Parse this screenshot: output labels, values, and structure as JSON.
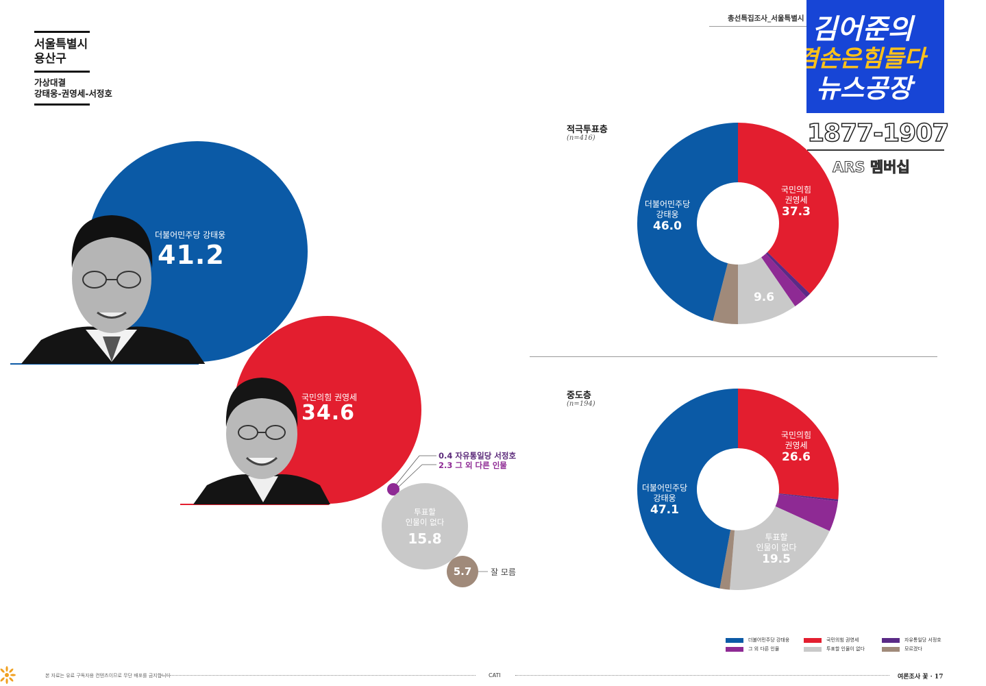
{
  "header": {
    "region_line1": "서울특별시",
    "region_line2": "용산구",
    "subtitle_line1": "가상대결",
    "subtitle_line2": "강태웅-권영세-서정호"
  },
  "top_right": {
    "page_header": "총선특집조사_서울특별시",
    "badge_line1": "김어준의",
    "badge_line2": "겸손은힘들다",
    "badge_line3": "뉴스공장",
    "badge_year": "1877-1907",
    "badge_sub": "ARS 멤버십"
  },
  "colors": {
    "democratic": "#0b5aa6",
    "ppp": "#e31e2f",
    "liberty": "#5a2a86",
    "other": "#8e2a94",
    "none": "#c9c9c9",
    "dontknow": "#a08a7a"
  },
  "chart_data": [
    {
      "type": "bubble",
      "title": "가상대결 강태웅-권영세-서정호",
      "series": [
        {
          "key": "democratic",
          "party": "더불어민주당 강태웅",
          "value": 41.2
        },
        {
          "key": "ppp",
          "party": "국민의힘 권영세",
          "value": 34.6
        },
        {
          "key": "liberty",
          "party": "자유통일당 서정호",
          "value": 0.4
        },
        {
          "key": "other",
          "party": "그 외 다른 인물",
          "value": 2.3
        },
        {
          "key": "none",
          "party": "투표할 인물이 없다",
          "value": 15.8
        },
        {
          "key": "dontknow",
          "party": "잘 모름",
          "value": 5.7
        }
      ],
      "labels": {
        "democratic_party": "더불어민주당 강태웅",
        "democratic_value": "41.2",
        "ppp_party": "국민의힘 권영세",
        "ppp_value": "34.6",
        "liberty_line": "0.4 자유통일당 서정호",
        "other_line": "2.3 그 외 다른 인물",
        "none_line1": "투표할",
        "none_line2": "인물이 없다",
        "none_value": "15.8",
        "dontknow_value": "5.7",
        "dontknow_label": "잘 모름"
      }
    },
    {
      "type": "donut",
      "title": "적극투표층",
      "n": "(n=416)",
      "segments": [
        {
          "key": "ppp",
          "value": 37.3
        },
        {
          "key": "liberty",
          "value": 0.8
        },
        {
          "key": "other",
          "value": 2.3
        },
        {
          "key": "none",
          "value": 9.6
        },
        {
          "key": "dontknow",
          "value": 4.0
        },
        {
          "key": "democratic",
          "value": 46.0
        }
      ],
      "labels": {
        "ppp_line1": "국민의힘",
        "ppp_line2": "권영세",
        "ppp_value": "37.3",
        "democratic_line1": "더불어민주당",
        "democratic_line2": "강태웅",
        "democratic_value": "46.0",
        "none_value": "9.6"
      }
    },
    {
      "type": "donut",
      "title": "중도층",
      "n": "(n=194)",
      "segments": [
        {
          "key": "ppp",
          "value": 26.6
        },
        {
          "key": "liberty",
          "value": 0.3
        },
        {
          "key": "other",
          "value": 4.9
        },
        {
          "key": "none",
          "value": 19.5
        },
        {
          "key": "dontknow",
          "value": 1.6
        },
        {
          "key": "democratic",
          "value": 47.1
        }
      ],
      "labels": {
        "ppp_line1": "국민의힘",
        "ppp_line2": "권영세",
        "ppp_value": "26.6",
        "democratic_line1": "더불어민주당",
        "democratic_line2": "강태웅",
        "democratic_value": "47.1",
        "none_line1": "투표할",
        "none_line2": "인물이 없다",
        "none_value": "19.5"
      }
    }
  ],
  "legend": [
    {
      "key": "democratic",
      "label": "더불어민주당 강태웅"
    },
    {
      "key": "ppp",
      "label": "국민의힘 권영세"
    },
    {
      "key": "liberty",
      "label": "자유통일당 서정호"
    },
    {
      "key": "other",
      "label": "그 외 다른 인물"
    },
    {
      "key": "none",
      "label": "투표할 인물이 없다"
    },
    {
      "key": "dontknow",
      "label": "모르겠다"
    }
  ],
  "footer": {
    "notice": "본 자료는 유료 구독자용 컨텐츠이므로 무단 배포를 금지합니다",
    "center": "CATI",
    "page": "여론조사 꽃 · 17"
  }
}
